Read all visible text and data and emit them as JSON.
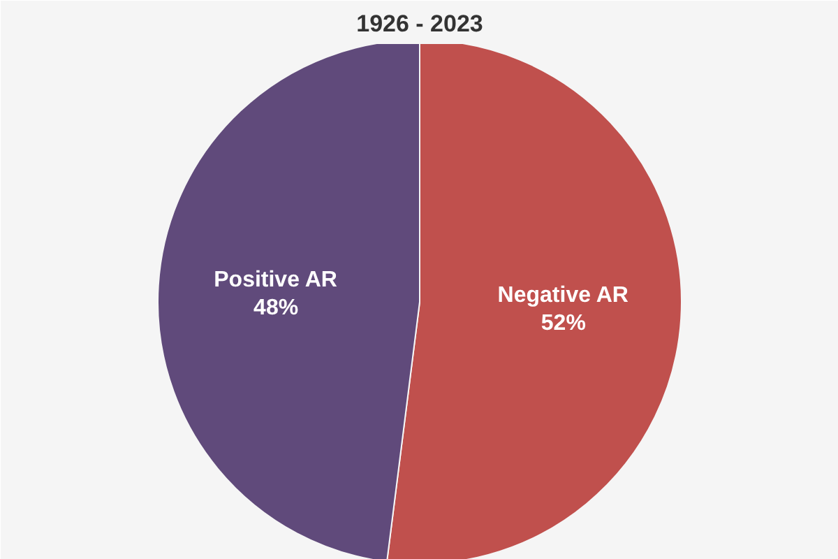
{
  "chart_data": {
    "type": "pie",
    "title": "1926 - 2023",
    "categories": [
      "Negative AR",
      "Positive AR"
    ],
    "values": [
      52,
      48
    ],
    "value_labels": [
      "52%",
      "48%"
    ],
    "colors": [
      "#c0504d",
      "#604a7b"
    ]
  }
}
